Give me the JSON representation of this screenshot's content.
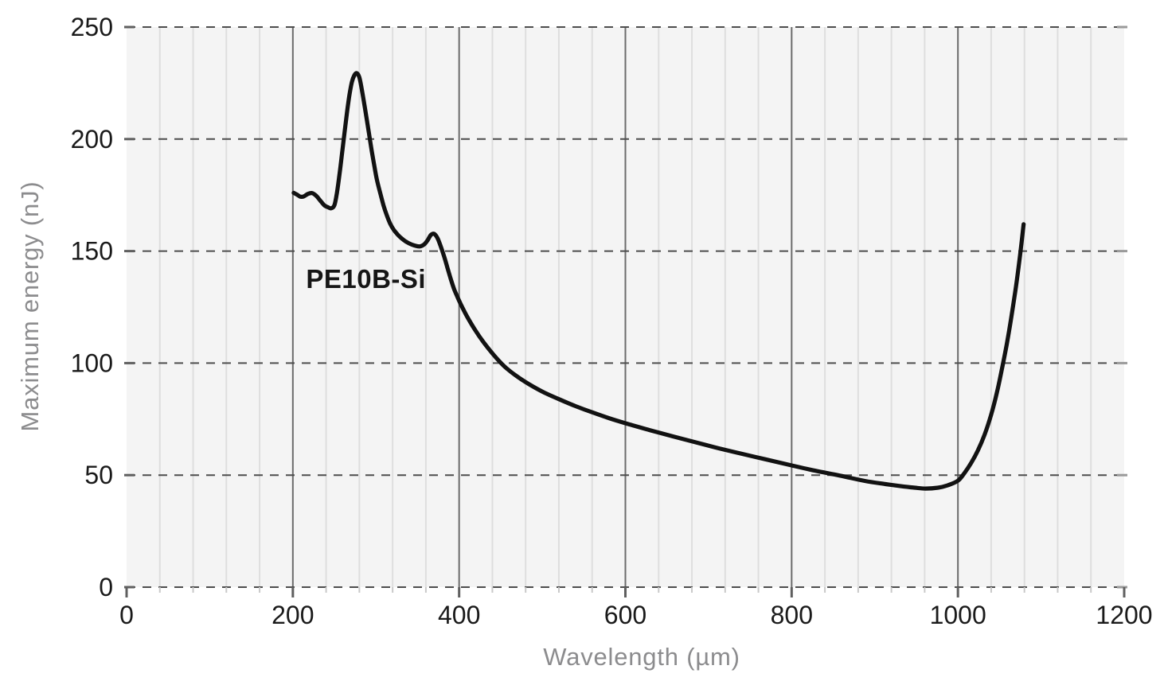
{
  "figure": {
    "background_color": "#ffffff"
  },
  "chart_data": {
    "type": "line",
    "title": "",
    "xlabel": "Wavelength (µm)",
    "ylabel": "Maximum energy (nJ)",
    "xlim": [
      0,
      1200
    ],
    "ylim": [
      0,
      250
    ],
    "xticks": [
      0,
      200,
      400,
      600,
      800,
      1000,
      1200
    ],
    "yticks": [
      0,
      50,
      100,
      150,
      200,
      250
    ],
    "x_minor_step": 40,
    "grid": {
      "horizontal": "dashed",
      "vertical_major": "solid",
      "vertical_minor": "solid"
    },
    "legend_position": "none",
    "annotation": {
      "label": "PE10B-Si",
      "x_um": 288,
      "y_nJ": 137.5
    },
    "style": {
      "plot_bg": "#f4f4f4",
      "minor_grid": "#dedede",
      "major_grid": "#6b6b6b",
      "dash_grid": "#4d4d4d",
      "tick_color": "#5f5f5f",
      "minor_tick_color": "#c9c9c9",
      "right_tick_color": "#9a9a9a",
      "text_color": "#1a1a1a",
      "axis_title_color": "#8c8c8e"
    },
    "series": [
      {
        "name": "PE10B-Si",
        "color": "#121212",
        "stroke_width": 5.2,
        "points": [
          [
            201,
            176
          ],
          [
            205,
            175.2
          ],
          [
            209,
            174.3
          ],
          [
            213,
            174.4
          ],
          [
            218,
            175.5
          ],
          [
            223,
            175.9
          ],
          [
            228,
            174.7
          ],
          [
            233,
            172.5
          ],
          [
            238,
            170.4
          ],
          [
            242,
            169.6
          ],
          [
            246,
            169.1
          ],
          [
            250,
            170.5
          ],
          [
            253,
            176
          ],
          [
            256,
            184
          ],
          [
            259,
            193
          ],
          [
            262,
            202.5
          ],
          [
            265,
            211.5
          ],
          [
            268,
            219.5
          ],
          [
            271,
            225.5
          ],
          [
            274,
            228.5
          ],
          [
            277,
            229.4
          ],
          [
            280,
            227.5
          ],
          [
            283,
            222
          ],
          [
            286,
            215.5
          ],
          [
            289,
            208.5
          ],
          [
            292,
            201.5
          ],
          [
            295,
            194.5
          ],
          [
            298,
            188
          ],
          [
            301,
            182
          ],
          [
            305,
            176
          ],
          [
            309,
            170.5
          ],
          [
            313,
            166
          ],
          [
            317,
            162.3
          ],
          [
            321,
            159.7
          ],
          [
            326,
            157.4
          ],
          [
            331,
            155.6
          ],
          [
            337,
            154
          ],
          [
            343,
            152.9
          ],
          [
            348,
            152.3
          ],
          [
            353,
            152.1
          ],
          [
            358,
            153
          ],
          [
            362,
            154.8
          ],
          [
            366,
            157.2
          ],
          [
            370,
            157.7
          ],
          [
            374,
            155.8
          ],
          [
            378,
            152
          ],
          [
            382,
            147.5
          ],
          [
            386,
            142.5
          ],
          [
            390,
            137.5
          ],
          [
            394,
            133
          ],
          [
            398,
            129.5
          ],
          [
            403,
            125.5
          ],
          [
            410,
            120.5
          ],
          [
            419,
            114.9
          ],
          [
            429,
            109.5
          ],
          [
            441,
            103.9
          ],
          [
            454,
            98.7
          ],
          [
            468,
            94.5
          ],
          [
            484,
            90.6
          ],
          [
            501,
            87.1
          ],
          [
            520,
            83.9
          ],
          [
            540,
            80.8
          ],
          [
            561,
            77.9
          ],
          [
            583,
            75.1
          ],
          [
            606,
            72.5
          ],
          [
            630,
            70
          ],
          [
            655,
            67.5
          ],
          [
            681,
            65
          ],
          [
            709,
            62.3
          ],
          [
            738,
            59.7
          ],
          [
            768,
            57.1
          ],
          [
            798,
            54.5
          ],
          [
            828,
            52
          ],
          [
            858,
            49.8
          ],
          [
            888,
            47.4
          ],
          [
            913,
            46
          ],
          [
            935,
            44.9
          ],
          [
            948,
            44.4
          ],
          [
            961,
            44
          ],
          [
            976,
            44.4
          ],
          [
            988,
            45.5
          ],
          [
            1000,
            47.5
          ],
          [
            1008,
            51
          ],
          [
            1016,
            55.5
          ],
          [
            1024,
            61
          ],
          [
            1032,
            68
          ],
          [
            1040,
            77
          ],
          [
            1047,
            87
          ],
          [
            1053,
            97.5
          ],
          [
            1059,
            109
          ],
          [
            1064,
            120
          ],
          [
            1069,
            132
          ],
          [
            1073,
            143
          ],
          [
            1076,
            152
          ],
          [
            1079,
            162
          ]
        ]
      }
    ]
  }
}
